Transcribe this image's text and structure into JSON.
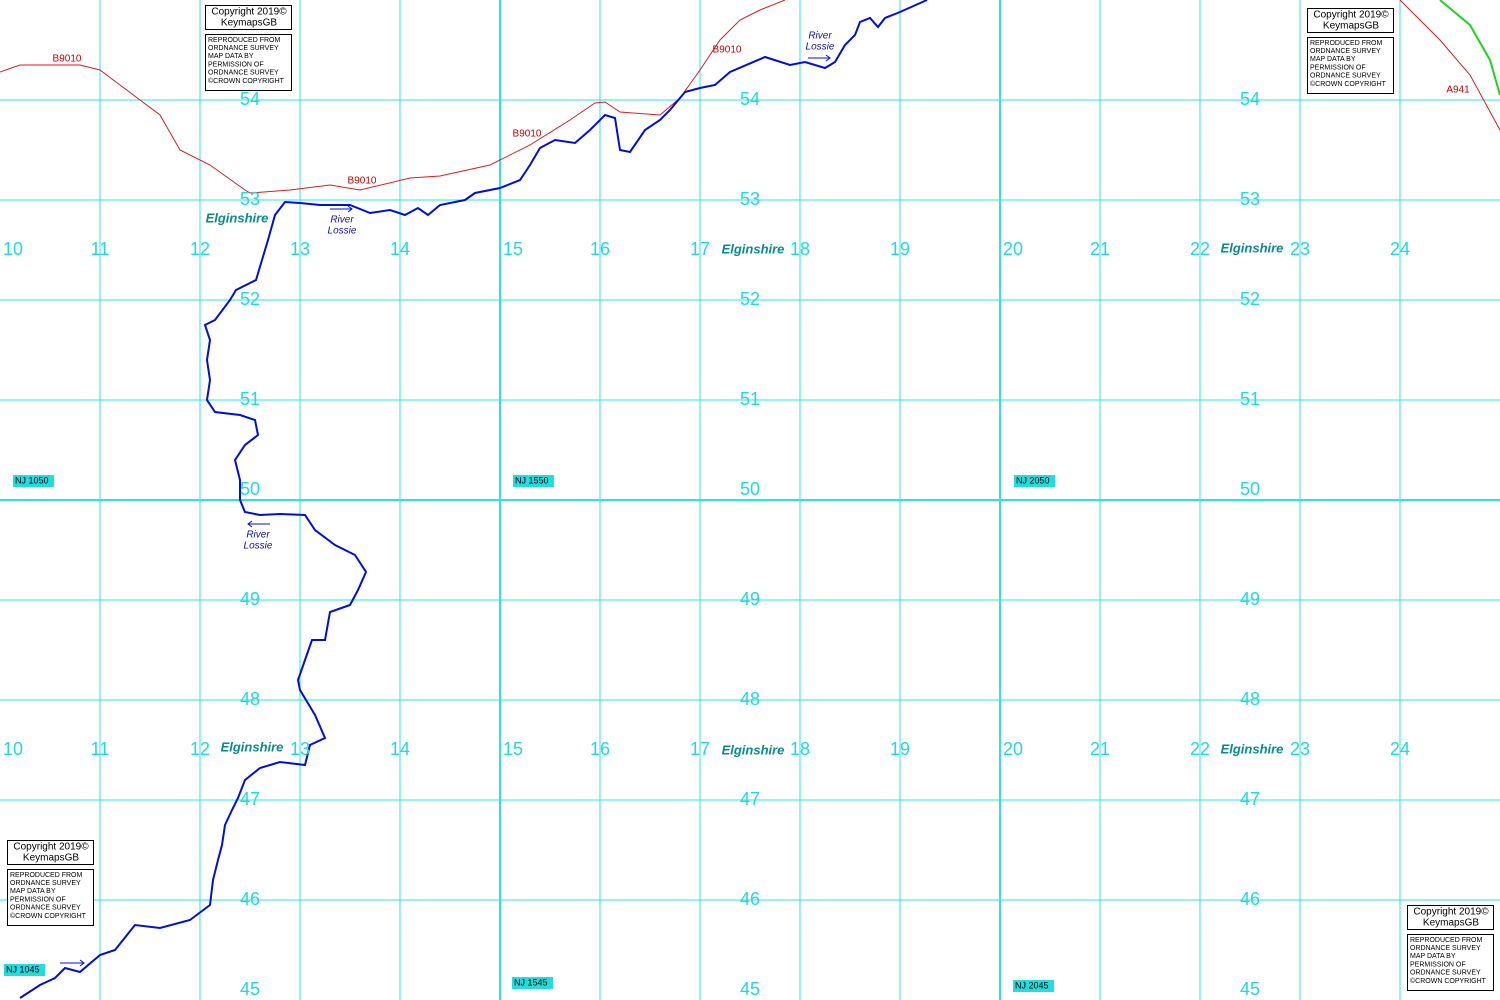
{
  "grid": {
    "eastings": [
      10,
      11,
      12,
      13,
      14,
      15,
      16,
      17,
      18,
      19,
      20,
      21,
      22,
      23,
      24
    ],
    "northings": [
      54,
      53,
      52,
      51,
      50,
      49,
      48,
      47,
      46,
      45
    ],
    "squares": [
      "NJ 1050",
      "NJ 1550",
      "NJ 2050",
      "NJ 1045",
      "NJ 1545",
      "NJ 2045"
    ]
  },
  "copyright": {
    "title": "Copyright 2019©",
    "brand": "KeymapsGB",
    "notice": [
      "REPRODUCED FROM",
      "ORDNANCE SURVEY",
      "MAP DATA BY",
      "PERMISSION OF",
      "ORDNANCE SURVEY",
      "©CROWN COPYRIGHT"
    ]
  },
  "labels": {
    "county": "Elginshire",
    "river": [
      "River",
      "Lossie"
    ],
    "roads": [
      "B9010",
      "A941"
    ]
  }
}
